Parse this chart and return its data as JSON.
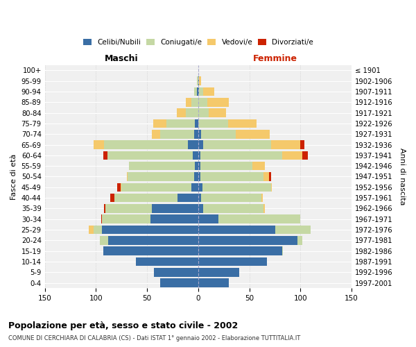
{
  "age_groups": [
    "0-4",
    "5-9",
    "10-14",
    "15-19",
    "20-24",
    "25-29",
    "30-34",
    "35-39",
    "40-44",
    "45-49",
    "50-54",
    "55-59",
    "60-64",
    "65-69",
    "70-74",
    "75-79",
    "80-84",
    "85-89",
    "90-94",
    "95-99",
    "100+"
  ],
  "years": [
    "1997-2001",
    "1992-1996",
    "1987-1991",
    "1982-1986",
    "1977-1981",
    "1972-1976",
    "1967-1971",
    "1962-1966",
    "1957-1961",
    "1952-1956",
    "1947-1951",
    "1942-1946",
    "1937-1941",
    "1932-1936",
    "1927-1931",
    "1922-1926",
    "1917-1921",
    "1912-1916",
    "1907-1911",
    "1902-1906",
    "≤ 1901"
  ],
  "maschi": {
    "celibi": [
      37,
      43,
      61,
      93,
      88,
      94,
      47,
      45,
      20,
      7,
      4,
      3,
      5,
      10,
      4,
      3,
      0,
      0,
      1,
      0,
      0
    ],
    "coniugati": [
      0,
      0,
      0,
      0,
      8,
      8,
      47,
      46,
      62,
      68,
      65,
      65,
      84,
      82,
      33,
      28,
      12,
      7,
      3,
      1,
      0
    ],
    "vedovi": [
      0,
      0,
      0,
      0,
      0,
      5,
      0,
      0,
      0,
      1,
      1,
      0,
      0,
      10,
      8,
      13,
      9,
      5,
      0,
      0,
      0
    ],
    "divorziati": [
      0,
      0,
      0,
      0,
      0,
      0,
      1,
      1,
      4,
      3,
      0,
      0,
      4,
      0,
      0,
      0,
      0,
      0,
      0,
      0,
      0
    ]
  },
  "femmine": {
    "nubili": [
      30,
      40,
      67,
      82,
      97,
      75,
      20,
      5,
      3,
      4,
      2,
      2,
      2,
      5,
      3,
      0,
      0,
      0,
      1,
      1,
      0
    ],
    "coniugate": [
      0,
      0,
      0,
      1,
      5,
      35,
      80,
      59,
      59,
      67,
      62,
      51,
      80,
      66,
      34,
      29,
      10,
      9,
      4,
      0,
      0
    ],
    "vedove": [
      0,
      0,
      0,
      0,
      0,
      0,
      0,
      1,
      1,
      1,
      5,
      12,
      20,
      29,
      33,
      28,
      17,
      21,
      11,
      2,
      0
    ],
    "divorziate": [
      0,
      0,
      0,
      0,
      0,
      0,
      0,
      0,
      0,
      0,
      2,
      0,
      5,
      4,
      0,
      0,
      0,
      0,
      0,
      0,
      0
    ]
  },
  "colors": {
    "celibi": "#3A6EA5",
    "coniugati": "#C5D8A4",
    "vedovi": "#F5C96B",
    "divorziati": "#CC2200"
  },
  "xlim": 150,
  "title": "Popolazione per età, sesso e stato civile - 2002",
  "subtitle": "COMUNE DI CERCHIARA DI CALABRIA (CS) - Dati ISTAT 1° gennaio 2002 - Elaborazione TUTTITALIA.IT",
  "ylabel_left": "Fasce di età",
  "ylabel_right": "Anni di nascita",
  "xlabel_maschi": "Maschi",
  "xlabel_femmine": "Femmine",
  "bg_color": "#f0f0f0",
  "grid_color": "#cccccc"
}
